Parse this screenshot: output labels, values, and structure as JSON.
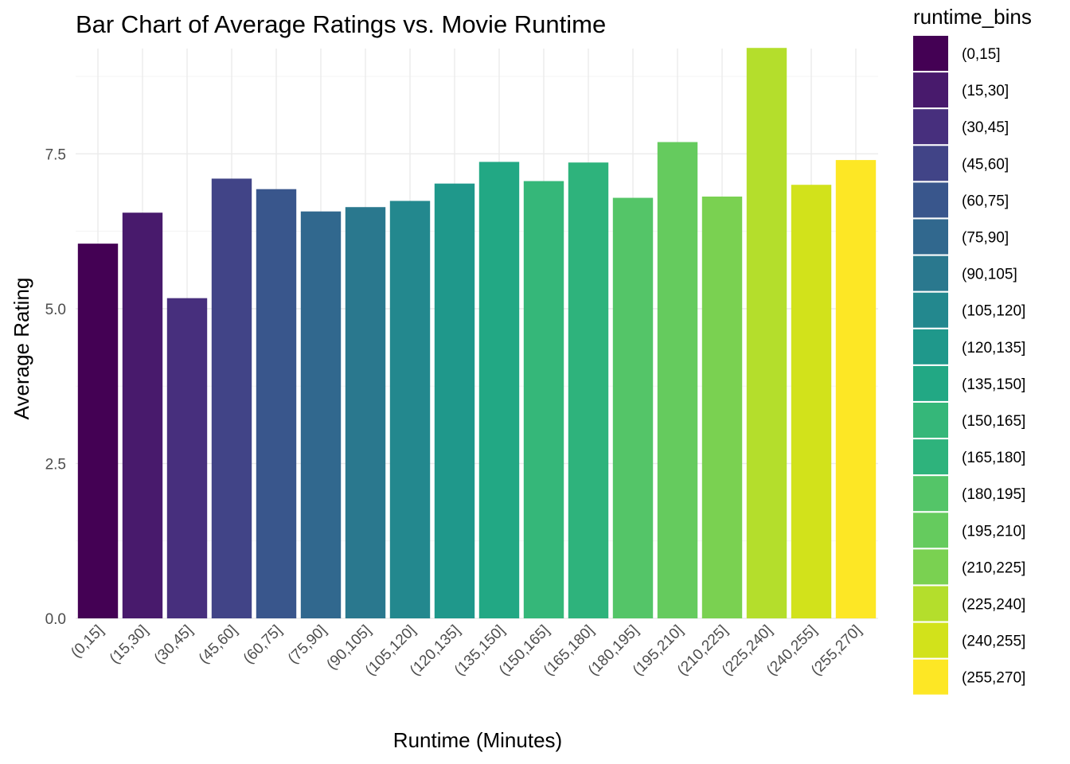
{
  "chart_data": {
    "type": "bar",
    "title": "Bar Chart of Average Ratings vs. Movie Runtime",
    "xlabel": "Runtime (Minutes)",
    "ylabel": "Average Rating",
    "ylim": [
      0,
      9.2
    ],
    "yticks": [
      0.0,
      2.5,
      5.0,
      7.5
    ],
    "ytick_labels": [
      "0.0",
      "2.5",
      "5.0",
      "7.5"
    ],
    "grid": true,
    "legend": {
      "title": "runtime_bins",
      "position": "right"
    },
    "categories": [
      "(0,15]",
      "(15,30]",
      "(30,45]",
      "(45,60]",
      "(60,75]",
      "(75,90]",
      "(90,105]",
      "(105,120]",
      "(120,135]",
      "(135,150]",
      "(150,165]",
      "(165,180]",
      "(180,195]",
      "(195,210]",
      "(210,225]",
      "(225,240]",
      "(240,255]",
      "(255,270]"
    ],
    "values": [
      6.05,
      6.55,
      5.17,
      7.1,
      6.93,
      6.57,
      6.64,
      6.74,
      7.02,
      7.37,
      7.06,
      7.36,
      6.79,
      7.69,
      6.81,
      9.21,
      7.0,
      7.4
    ],
    "colors": [
      "#440154",
      "#481A6C",
      "#472F7D",
      "#414487",
      "#39568C",
      "#31688E",
      "#2A788E",
      "#23888E",
      "#1F988B",
      "#22A884",
      "#35B779",
      "#2EB37C",
      "#54C568",
      "#65CB5E",
      "#7AD151",
      "#B4DE2C",
      "#D2E21B",
      "#FDE725"
    ]
  }
}
